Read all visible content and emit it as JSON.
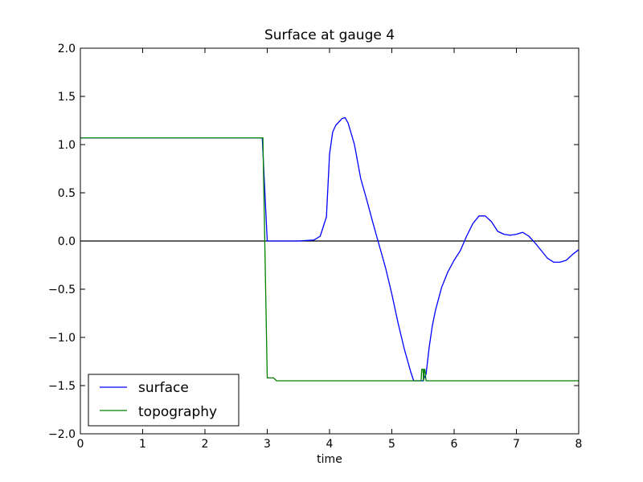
{
  "chart_data": {
    "type": "line",
    "title": "Surface at gauge 4",
    "xlabel": "time",
    "ylabel": "",
    "xlim": [
      0,
      8
    ],
    "ylim": [
      -2.0,
      2.0
    ],
    "xticks": [
      "0",
      "1",
      "2",
      "3",
      "4",
      "5",
      "6",
      "7",
      "8"
    ],
    "yticks": [
      "2.0",
      "1.5",
      "1.0",
      "0.5",
      "0.0",
      "−0.5",
      "−1.0",
      "−1.5",
      "−2.0"
    ],
    "grid": false,
    "legend_position": "lower-left",
    "reference_line": {
      "y": 0.0,
      "color": "#000000"
    },
    "series": [
      {
        "name": "surface",
        "color": "#0000ff",
        "x": [
          0,
          2.92,
          3.0,
          3.5,
          3.75,
          3.85,
          3.95,
          4.0,
          4.05,
          4.1,
          4.2,
          4.25,
          4.3,
          4.4,
          4.5,
          4.6,
          4.7,
          4.8,
          4.9,
          5.0,
          5.1,
          5.2,
          5.3,
          5.35,
          5.38,
          5.42,
          5.45,
          5.5,
          5.55,
          5.6,
          5.65,
          5.7,
          5.8,
          5.9,
          6.0,
          6.1,
          6.2,
          6.3,
          6.4,
          6.5,
          6.6,
          6.7,
          6.8,
          6.9,
          7.0,
          7.1,
          7.2,
          7.3,
          7.4,
          7.5,
          7.6,
          7.7,
          7.8,
          7.9,
          8.0
        ],
        "y": [
          1.07,
          1.07,
          0.0,
          0.0,
          0.01,
          0.05,
          0.25,
          0.9,
          1.13,
          1.2,
          1.27,
          1.28,
          1.22,
          1.0,
          0.65,
          0.42,
          0.18,
          -0.05,
          -0.28,
          -0.55,
          -0.85,
          -1.12,
          -1.35,
          -1.45,
          -1.45,
          -1.45,
          -1.45,
          -1.45,
          -1.38,
          -1.1,
          -0.88,
          -0.72,
          -0.48,
          -0.32,
          -0.2,
          -0.1,
          0.05,
          0.18,
          0.26,
          0.26,
          0.2,
          0.1,
          0.07,
          0.06,
          0.07,
          0.09,
          0.05,
          -0.02,
          -0.1,
          -0.18,
          -0.22,
          -0.22,
          -0.2,
          -0.14,
          -0.09
        ]
      },
      {
        "name": "topography",
        "color": "#008000",
        "x": [
          0,
          2.93,
          3.0,
          3.02,
          3.03,
          3.1,
          3.15,
          3.5,
          4.0,
          4.5,
          5.0,
          5.45,
          5.47,
          5.48,
          5.5,
          5.51,
          5.52,
          5.53,
          5.55,
          6.0,
          7.0,
          8.0
        ],
        "y": [
          1.07,
          1.07,
          -1.42,
          -1.42,
          -1.42,
          -1.42,
          -1.45,
          -1.45,
          -1.45,
          -1.45,
          -1.45,
          -1.45,
          -1.45,
          -1.33,
          -1.33,
          -1.45,
          -1.33,
          -1.33,
          -1.45,
          -1.45,
          -1.45,
          -1.45
        ]
      }
    ]
  }
}
